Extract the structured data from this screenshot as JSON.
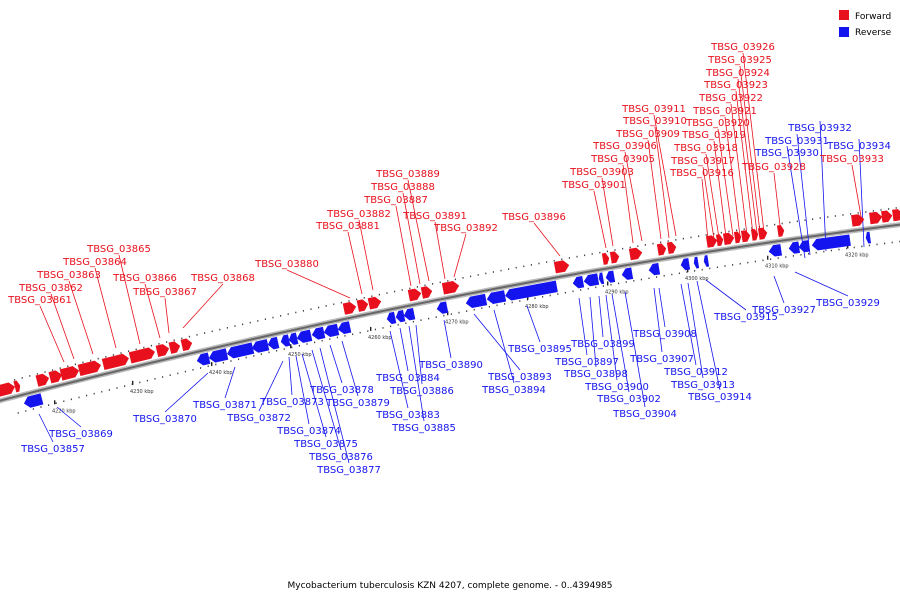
{
  "colors": {
    "forward": "#e8101c",
    "reverse": "#1414ef",
    "backbone": "#888888"
  },
  "legend": {
    "forward_label": "Forward",
    "reverse_label": "Reverse"
  },
  "caption": "Mycobacterium tuberculosis KZN 4207, complete genome. - 0..4394985",
  "tick_labels": [
    "4220 kbp",
    "4230 kbp",
    "4240 kbp",
    "4250 kbp",
    "4260 kbp",
    "4270 kbp",
    "4280 kbp",
    "4290 kbp",
    "4300 kbp",
    "4310 kbp",
    "4320 kbp"
  ],
  "forward_genes": [
    "TBSG_03861",
    "TBSG_03862",
    "TBSG_03863",
    "TBSG_03864",
    "TBSG_03865",
    "TBSG_03866",
    "TBSG_03867",
    "TBSG_03868",
    "TBSG_03880",
    "TBSG_03881",
    "TBSG_03882",
    "TBSG_03887",
    "TBSG_03888",
    "TBSG_03889",
    "TBSG_03891",
    "TBSG_03892",
    "TBSG_03896",
    "TBSG_03901",
    "TBSG_03903",
    "TBSG_03905",
    "TBSG_03906",
    "TBSG_03909",
    "TBSG_03910",
    "TBSG_03911",
    "TBSG_03916",
    "TBSG_03917",
    "TBSG_03918",
    "TBSG_03919",
    "TBSG_03920",
    "TBSG_03921",
    "TBSG_03922",
    "TBSG_03923",
    "TBSG_03924",
    "TBSG_03925",
    "TBSG_03926",
    "TBSG_03928",
    "TBSG_03933"
  ],
  "reverse_genes": [
    "TBSG_03857",
    "TBSG_03869",
    "TBSG_03870",
    "TBSG_03871",
    "TBSG_03872",
    "TBSG_03873",
    "TBSG_03874",
    "TBSG_03875",
    "TBSG_03876",
    "TBSG_03877",
    "TBSG_03878",
    "TBSG_03879",
    "TBSG_03883",
    "TBSG_03884",
    "TBSG_03885",
    "TBSG_03886",
    "TBSG_03890",
    "TBSG_03893",
    "TBSG_03894",
    "TBSG_03895",
    "TBSG_03897",
    "TBSG_03898",
    "TBSG_03899",
    "TBSG_03900",
    "TBSG_03902",
    "TBSG_03904",
    "TBSG_03907",
    "TBSG_03908",
    "TBSG_03912",
    "TBSG_03913",
    "TBSG_03914",
    "TBSG_03915",
    "TBSG_03927",
    "TBSG_03929",
    "TBSG_03930",
    "TBSG_03931",
    "TBSG_03932",
    "TBSG_03934"
  ]
}
